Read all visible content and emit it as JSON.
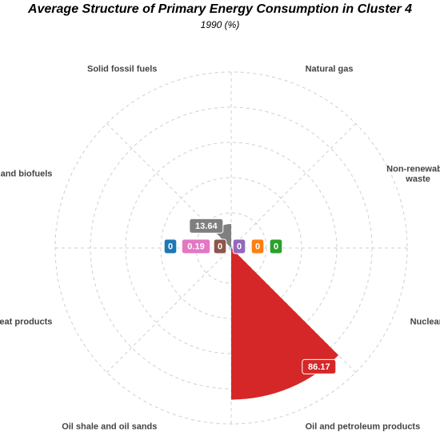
{
  "chart_data": {
    "type": "polar_area",
    "title": "Average Structure of Primary Energy Consumption in Cluster 4",
    "subtitle": "1990 (%)",
    "categories": [
      {
        "label": "Natural gas",
        "value": 0,
        "color": "#9467bd"
      },
      {
        "label": "Non-renewable waste",
        "value": 0,
        "color": "#ff7f0e"
      },
      {
        "label": "Nuclear heat",
        "value": 0,
        "color": "#2ca02c"
      },
      {
        "label": "Oil and petroleum products",
        "value": 86.17,
        "color": "#d62728"
      },
      {
        "label": "Oil shale and oil sands",
        "value": 0,
        "color": "#8c564b"
      },
      {
        "label": "Peat and peat products",
        "value": 0.19,
        "color": "#e377c2"
      },
      {
        "label": "Renewables and biofuels",
        "value": 0,
        "color": "#1f77b4"
      },
      {
        "label": "Solid fossil fuels",
        "value": 13.64,
        "color": "#7f7f7f"
      }
    ],
    "radial_max": 100,
    "grid": true
  }
}
